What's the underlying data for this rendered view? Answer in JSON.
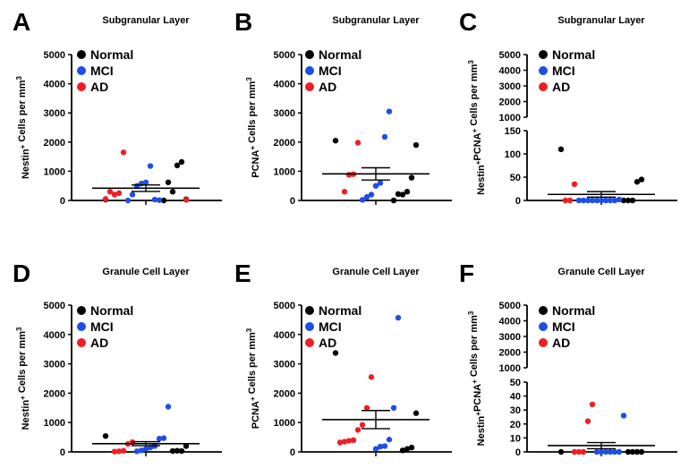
{
  "figure": {
    "legend_entries": [
      "Normal",
      "MCI",
      "AD"
    ],
    "colors": {
      "Normal": "#000000",
      "MCI": "#1f4ee6",
      "AD": "#ee1f24"
    }
  },
  "chart_data": [
    {
      "id": "A",
      "type": "scatter",
      "title": "Subgranular Layer",
      "ylabel": "Nestin⁺ Cells per mm³",
      "ylim": [
        0,
        5000
      ],
      "yticks": [
        0,
        1000,
        2000,
        3000,
        4000,
        5000
      ],
      "mean": 420,
      "sem": 110,
      "series": [
        {
          "name": "Normal",
          "values": [
            30,
            40,
            1320,
            1200,
            300,
            620,
            0
          ]
        },
        {
          "name": "MCI",
          "values": [
            10,
            30,
            1180,
            620,
            580,
            500,
            200,
            0
          ]
        },
        {
          "name": "AD",
          "values": [
            1650,
            250,
            200,
            300,
            50,
            20
          ]
        }
      ]
    },
    {
      "id": "B",
      "type": "scatter",
      "title": "Subgranular Layer",
      "ylabel": "PCNA⁺ Cells per mm³",
      "ylim": [
        0,
        5000
      ],
      "yticks": [
        0,
        1000,
        2000,
        3000,
        4000,
        5000
      ],
      "mean": 910,
      "sem": 210,
      "series": [
        {
          "name": "Normal",
          "values": [
            2050,
            1900,
            780,
            300,
            200,
            220,
            0
          ]
        },
        {
          "name": "MCI",
          "values": [
            3050,
            2180,
            600,
            500,
            200,
            120,
            20
          ]
        },
        {
          "name": "AD",
          "values": [
            1980,
            900,
            880,
            300
          ]
        }
      ]
    },
    {
      "id": "C",
      "type": "scatter",
      "title": "Subgranular Layer",
      "ylabel": "Nestin⁺PCNA⁺ Cells per mm³",
      "ylim": [
        0,
        5000
      ],
      "axis_break": [
        150,
        1000
      ],
      "yticks_low": [
        0,
        50,
        100,
        150
      ],
      "yticks_high": [
        1000,
        2000,
        3000,
        4000,
        5000
      ],
      "mean": 13,
      "sem": 6,
      "series": [
        {
          "name": "Normal",
          "values": [
            110,
            45,
            40,
            0,
            0,
            0
          ]
        },
        {
          "name": "MCI",
          "values": [
            2,
            0,
            0,
            0,
            0,
            0,
            0,
            0,
            0,
            0
          ]
        },
        {
          "name": "AD",
          "values": [
            35,
            0,
            0
          ]
        }
      ]
    },
    {
      "id": "D",
      "type": "scatter",
      "title": "Granule Cell Layer",
      "ylabel": "Nestin⁺ Cells per mm³",
      "ylim": [
        0,
        5000
      ],
      "yticks": [
        0,
        1000,
        2000,
        3000,
        4000,
        5000
      ],
      "mean": 280,
      "sem": 70,
      "series": [
        {
          "name": "Normal",
          "values": [
            540,
            200,
            30,
            40,
            30
          ]
        },
        {
          "name": "MCI",
          "values": [
            1540,
            470,
            450,
            200,
            150,
            100,
            50,
            20
          ]
        },
        {
          "name": "AD",
          "values": [
            330,
            270,
            40,
            20,
            10
          ]
        }
      ]
    },
    {
      "id": "E",
      "type": "scatter",
      "title": "Granule Cell Layer",
      "ylabel": "PCNA⁺ Cells per mm³",
      "ylim": [
        0,
        5000
      ],
      "yticks": [
        0,
        1000,
        2000,
        3000,
        4000,
        5000
      ],
      "mean": 1100,
      "sem": 310,
      "series": [
        {
          "name": "Normal",
          "values": [
            3370,
            1320,
            150,
            100,
            50
          ]
        },
        {
          "name": "MCI",
          "values": [
            4570,
            1500,
            420,
            200,
            180,
            100
          ]
        },
        {
          "name": "AD",
          "values": [
            2550,
            1500,
            920,
            750,
            400,
            380,
            350,
            320
          ]
        }
      ]
    },
    {
      "id": "F",
      "type": "scatter",
      "title": "Granule Cell Layer",
      "ylabel": "Nestin⁺PCNA⁺ Cells per mm³",
      "ylim": [
        0,
        5000
      ],
      "axis_break": [
        50,
        1000
      ],
      "yticks_low": [
        0,
        10,
        20,
        30,
        40,
        50
      ],
      "yticks_high": [
        1000,
        2000,
        3000,
        4000,
        5000
      ],
      "mean": 4.5,
      "sem": 2.2,
      "series": [
        {
          "name": "Normal",
          "values": [
            0,
            0,
            0,
            0,
            0
          ]
        },
        {
          "name": "MCI",
          "values": [
            26,
            0,
            0,
            0,
            0,
            0,
            0
          ]
        },
        {
          "name": "AD",
          "values": [
            34,
            22,
            0,
            0,
            0
          ]
        }
      ]
    }
  ]
}
